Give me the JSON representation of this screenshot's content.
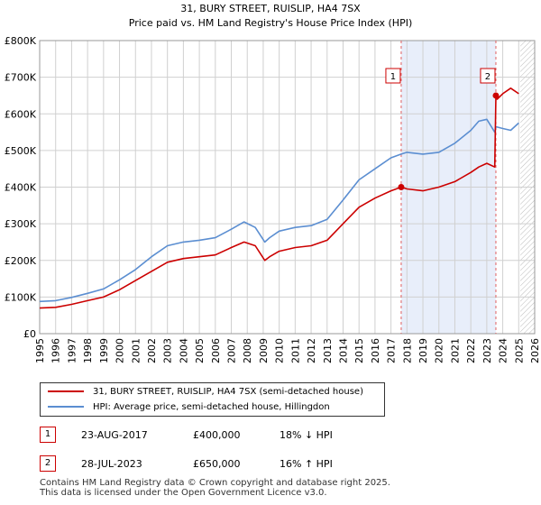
{
  "chart_data": {
    "type": "line",
    "title": "31, BURY STREET, RUISLIP, HA4 7SX",
    "subtitle": "Price paid vs. HM Land Registry's House Price Index (HPI)",
    "ylim": [
      0,
      800000
    ],
    "xlim": [
      1995,
      2026
    ],
    "y_ticks": [
      {
        "value": 0,
        "label": "£0"
      },
      {
        "value": 100000,
        "label": "£100K"
      },
      {
        "value": 200000,
        "label": "£200K"
      },
      {
        "value": 300000,
        "label": "£300K"
      },
      {
        "value": 400000,
        "label": "£400K"
      },
      {
        "value": 500000,
        "label": "£500K"
      },
      {
        "value": 600000,
        "label": "£600K"
      },
      {
        "value": 700000,
        "label": "£700K"
      },
      {
        "value": 800000,
        "label": "£800K"
      }
    ],
    "x_ticks": [
      "1995",
      "1996",
      "1997",
      "1998",
      "1999",
      "2000",
      "2001",
      "2002",
      "2003",
      "2004",
      "2005",
      "2006",
      "2007",
      "2008",
      "2009",
      "2010",
      "2011",
      "2012",
      "2013",
      "2014",
      "2015",
      "2016",
      "2017",
      "2018",
      "2019",
      "2020",
      "2021",
      "2022",
      "2023",
      "2024",
      "2025",
      "2026"
    ],
    "shaded_range": [
      2017.64,
      2023.57
    ],
    "future_hatch_from": 2025.1,
    "series": [
      {
        "name": "31, BURY STREET, RUISLIP, HA4 7SX (semi-detached house)",
        "color": "#cc0000",
        "x": [
          1995,
          1996,
          1997,
          1998,
          1999,
          2000,
          2001,
          2002,
          2003,
          2004,
          2005,
          2006,
          2007,
          2007.8,
          2008.5,
          2009.1,
          2009.4,
          2010,
          2011,
          2012,
          2013,
          2014,
          2015,
          2016,
          2017,
          2017.64,
          2018,
          2019,
          2020,
          2021,
          2022,
          2022.5,
          2023,
          2023.5,
          2023.57,
          2023.65,
          2024,
          2024.5,
          2025
        ],
        "values": [
          70000,
          72000,
          80000,
          90000,
          100000,
          120000,
          145000,
          170000,
          195000,
          205000,
          210000,
          215000,
          235000,
          250000,
          240000,
          200000,
          210000,
          225000,
          235000,
          240000,
          255000,
          300000,
          345000,
          370000,
          390000,
          400000,
          395000,
          390000,
          400000,
          415000,
          440000,
          455000,
          465000,
          455000,
          650000,
          640000,
          655000,
          670000,
          655000
        ]
      },
      {
        "name": "HPI: Average price, semi-detached house, Hillingdon",
        "color": "#5b8ed1",
        "x": [
          1995,
          1996,
          1997,
          1998,
          1999,
          2000,
          2001,
          2002,
          2003,
          2004,
          2005,
          2006,
          2007,
          2007.8,
          2008.5,
          2009.1,
          2009.4,
          2010,
          2011,
          2012,
          2013,
          2014,
          2015,
          2016,
          2017,
          2017.64,
          2018,
          2019,
          2020,
          2021,
          2022,
          2022.5,
          2023,
          2023.5,
          2023.57,
          2024,
          2024.5,
          2025
        ],
        "values": [
          88000,
          90000,
          99000,
          110000,
          122000,
          147000,
          175000,
          210000,
          240000,
          250000,
          255000,
          262000,
          285000,
          305000,
          290000,
          250000,
          262000,
          280000,
          290000,
          295000,
          312000,
          365000,
          420000,
          450000,
          480000,
          490000,
          495000,
          490000,
          495000,
          520000,
          555000,
          580000,
          585000,
          550000,
          565000,
          560000,
          555000,
          575000
        ]
      }
    ],
    "annotations": [
      {
        "label": "1",
        "x": 2017.64,
        "value": 400000
      },
      {
        "label": "2",
        "x": 2023.57,
        "value": 650000
      }
    ]
  },
  "legend": {
    "red_label": "31, BURY STREET, RUISLIP, HA4 7SX (semi-detached house)",
    "blue_label": "HPI: Average price, semi-detached house, Hillingdon"
  },
  "transactions": [
    {
      "num": "1",
      "date": "23-AUG-2017",
      "price": "£400,000",
      "hpi": "18% ↓ HPI"
    },
    {
      "num": "2",
      "date": "28-JUL-2023",
      "price": "£650,000",
      "hpi": "16% ↑ HPI"
    }
  ],
  "footer": {
    "line1": "Contains HM Land Registry data © Crown copyright and database right 2025.",
    "line2": "This data is licensed under the Open Government Licence v3.0."
  },
  "colors": {
    "red": "#cc0000",
    "blue": "#5b8ed1",
    "shade": "#e8eefa",
    "grid": "#d0d0d0"
  }
}
